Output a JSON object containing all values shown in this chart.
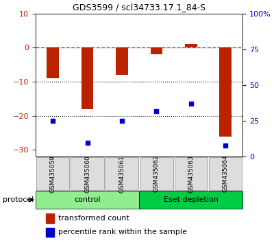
{
  "title": "GDS3599 / scl34733.17.1_84-S",
  "samples": [
    "GSM435059",
    "GSM435060",
    "GSM435061",
    "GSM435062",
    "GSM435063",
    "GSM435064"
  ],
  "transformed_count": [
    -9.0,
    -18.0,
    -8.0,
    -2.0,
    1.0,
    -26.0
  ],
  "percentile_rank": [
    25.0,
    10.0,
    25.0,
    32.0,
    37.0,
    8.0
  ],
  "groups": [
    {
      "label": "control",
      "samples": [
        0,
        1,
        2
      ],
      "color": "#90EE90"
    },
    {
      "label": "Eset depletion",
      "samples": [
        3,
        4,
        5
      ],
      "color": "#00CC44"
    }
  ],
  "ylim_left": [
    -32,
    10
  ],
  "ylim_right": [
    0,
    100
  ],
  "yticks_left": [
    10,
    0,
    -10,
    -20,
    -30
  ],
  "yticks_right": [
    0,
    25,
    50,
    75,
    100
  ],
  "yticklabels_right": [
    "0",
    "25",
    "50",
    "75",
    "100%"
  ],
  "bar_color": "#BB2200",
  "scatter_color": "#0000CC",
  "hline_color": "#CC4444",
  "dotline_color": "#000000",
  "background_color": "#FFFFFF",
  "protocol_label": "protocol",
  "legend_bar_label": "transformed count",
  "legend_scatter_label": "percentile rank within the sample"
}
